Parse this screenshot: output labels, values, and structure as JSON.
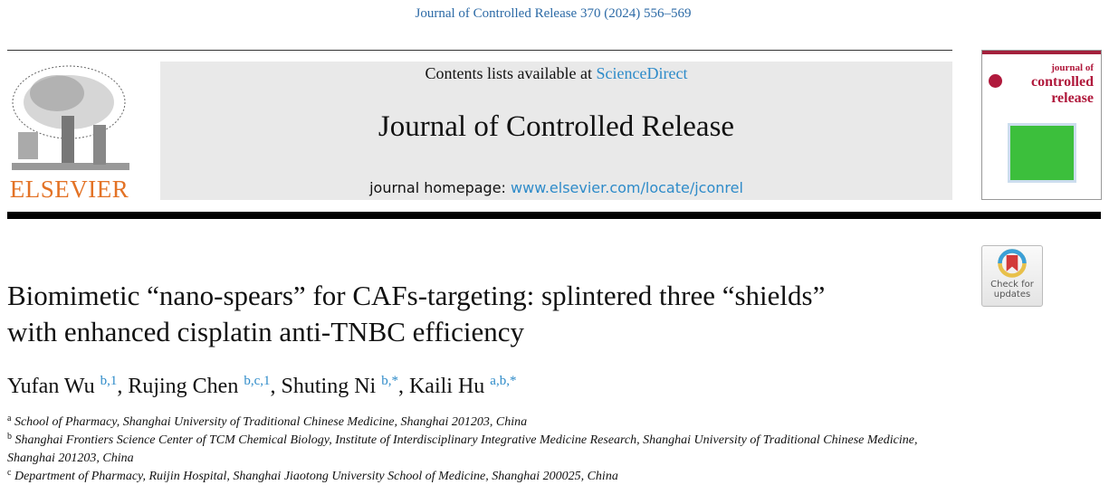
{
  "citation": "Journal of Controlled Release 370 (2024) 556–569",
  "publisher": "ELSEVIER",
  "banner": {
    "contents_prefix": "Contents lists available at ",
    "contents_link": "ScienceDirect",
    "journal_title": "Journal of Controlled Release",
    "homepage_prefix": "journal homepage: ",
    "homepage_link": "www.elsevier.com/locate/jconrel"
  },
  "cover": {
    "line1": "journal of",
    "line2": "controlled",
    "line3": "release"
  },
  "check_updates": {
    "line1": "Check for",
    "line2": "updates"
  },
  "article": {
    "title_line1": "Biomimetic “nano-spears” for CAFs-targeting: splintered three “shields”",
    "title_line2": "with enhanced cisplatin anti-TNBC efficiency",
    "authors": [
      {
        "name": "Yufan Wu",
        "sup": "b,1"
      },
      {
        "name": "Rujing Chen",
        "sup": "b,c,1"
      },
      {
        "name": "Shuting Ni",
        "sup": "b,*"
      },
      {
        "name": "Kaili Hu",
        "sup": "a,b,*"
      }
    ],
    "affiliations": [
      {
        "label": "a",
        "text": "School of Pharmacy, Shanghai University of Traditional Chinese Medicine, Shanghai 201203, China"
      },
      {
        "label": "b",
        "text": "Shanghai Frontiers Science Center of TCM Chemical Biology, Institute of Interdisciplinary Integrative Medicine Research, Shanghai University of Traditional Chinese Medicine, Shanghai 201203, China"
      },
      {
        "label": "c",
        "text": "Department of Pharmacy, Ruijin Hospital, Shanghai Jiaotong University School of Medicine, Shanghai 200025, China"
      }
    ]
  },
  "colors": {
    "link": "#2e8bc9",
    "elsevier_orange": "#e37225",
    "banner_bg": "#e9e9e9"
  }
}
